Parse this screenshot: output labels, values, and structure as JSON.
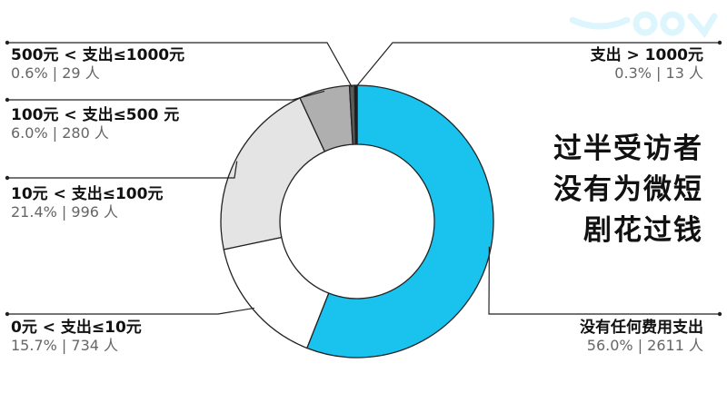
{
  "chart_data": {
    "type": "pie",
    "donut": true,
    "title": "",
    "start": "top",
    "direction": "clockwise",
    "slices": [
      {
        "label": "没有任何费用支出",
        "percent": 56.0,
        "percent_text": "56.0%",
        "count": 2611,
        "count_text": "2611",
        "color": "#19C3EE"
      },
      {
        "label": "0元 < 支出≤10元",
        "percent": 15.7,
        "percent_text": "15.7%",
        "count": 734,
        "count_text": "734",
        "color": "#FFFFFF"
      },
      {
        "label": "10元 < 支出≤100元",
        "percent": 21.4,
        "percent_text": "21.4%",
        "count": 996,
        "count_text": "996",
        "color": "#E4E4E4"
      },
      {
        "label": "100元 < 支出≤500 元",
        "percent": 6.0,
        "percent_text": "6.0%",
        "count": 280,
        "count_text": "280",
        "color": "#AFAFAF"
      },
      {
        "label": "500元 < 支出≤1000元",
        "percent": 0.6,
        "percent_text": "0.6%",
        "count": 29,
        "count_text": "29",
        "color": "#5A5A5A"
      },
      {
        "label": "支出 > 1000元",
        "percent": 0.3,
        "percent_text": "0.3%",
        "count": 13,
        "count_text": "13",
        "color": "#1A1A1A"
      }
    ],
    "count_unit": "人",
    "separator": "|"
  },
  "headline": {
    "line1": "过半受访者",
    "line2": "没有为微短",
    "line3": "剧花过钱"
  },
  "colors": {
    "accent": "#19C3EE",
    "stroke": "#222222",
    "leader": "#222222"
  }
}
